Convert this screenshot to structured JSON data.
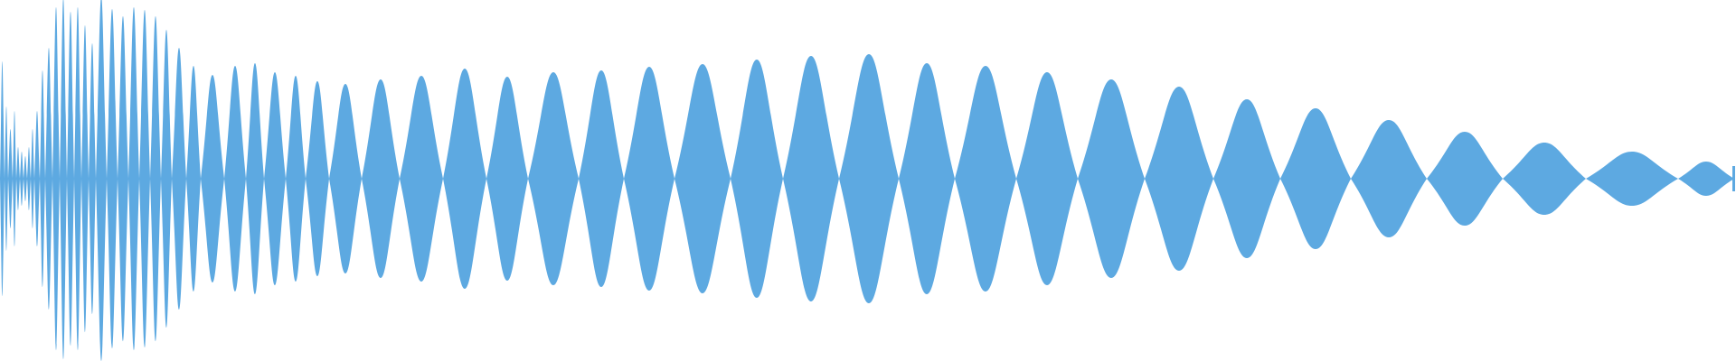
{
  "waveform": {
    "color": "#5DA9E1",
    "background": "#FFFFFF",
    "node_boundaries": [
      0,
      0.35,
      0.7,
      1.05,
      1.4,
      1.75,
      2.1,
      2.45,
      2.8,
      3.1,
      3.4,
      3.7,
      4.0,
      4.25,
      4.5,
      4.75,
      5.0,
      5.3,
      5.45,
      5.6,
      5.85,
      6.1,
      6.35,
      6.6,
      6.85,
      7.1,
      7.35,
      7.6,
      7.85,
      8.1,
      8.35,
      8.6,
      8.85,
      9.1,
      9.35,
      9.6,
      9.85,
      10.1,
      10.35,
      10.6,
      10.85,
      11.1,
      11.35,
      11.6,
      11.85,
      12.1,
      12.4,
      12.7,
      13.0,
      13.35,
      13.7,
      14.1,
      14.5,
      14.95,
      15.4,
      15.9,
      16.4,
      16.95,
      17.5,
      18.05,
      18.6,
      19.2,
      19.8,
      20.4
    ]
  }
}
